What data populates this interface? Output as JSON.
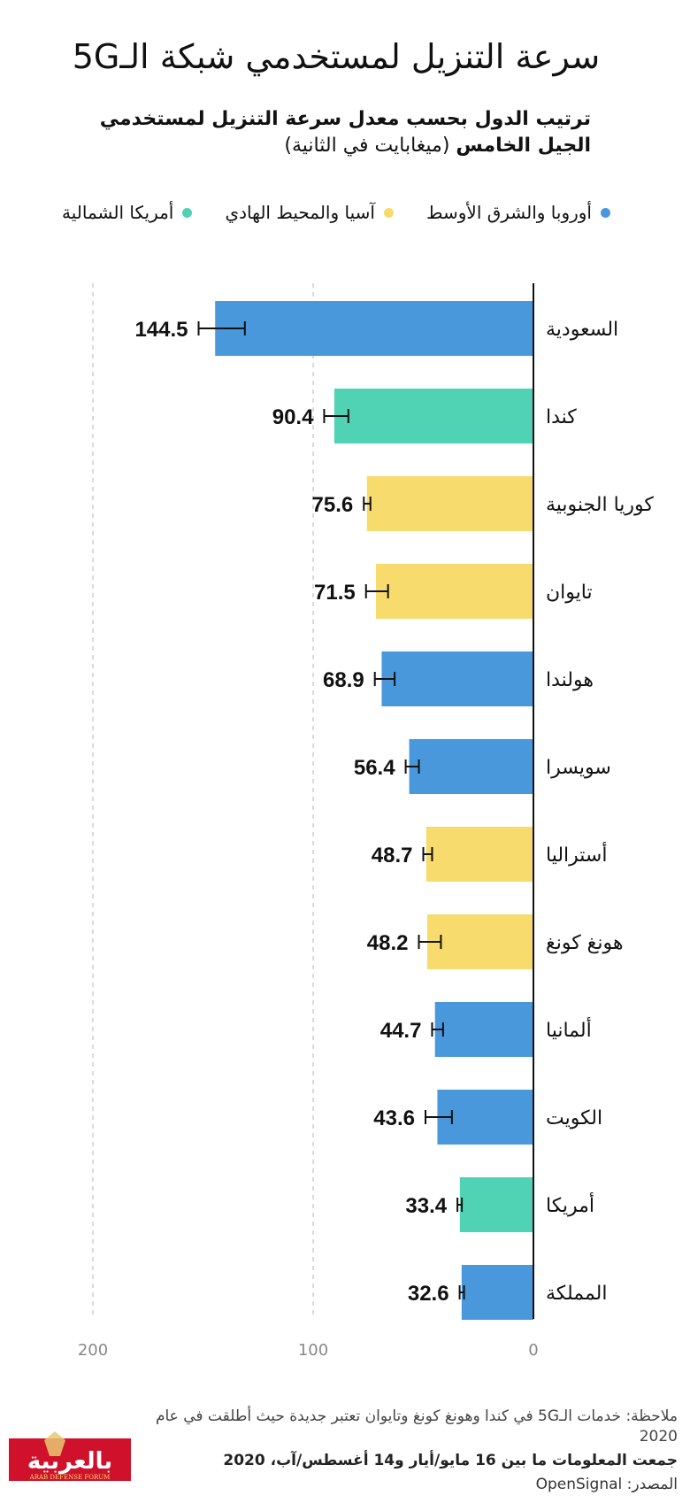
{
  "header": {
    "title": "سرعة التنزيل لمستخدمي شبكة الـ5G",
    "subtitle_bold": "ترتيب الدول بحسب معدل سرعة التنزيل لمستخدمي الجيل الخامس",
    "subtitle_unit": "(ميغابايت في الثانية)"
  },
  "legend": [
    {
      "label": "أوروبا والشرق الأوسط",
      "color": "#4a98dc"
    },
    {
      "label": "آسيا والمحيط الهادي",
      "color": "#f7db6c"
    },
    {
      "label": "أمريكا الشمالية",
      "color": "#4fd3b4"
    }
  ],
  "chart_data": {
    "type": "bar",
    "orientation": "horizontal",
    "categories": [
      "السعودية",
      "كندا",
      "كوريا الجنوبية",
      "تايوان",
      "هولندا",
      "سويسرا",
      "أستراليا",
      "هونغ كونغ",
      "ألمانيا",
      "الكويت",
      "أمريكا",
      "المملكة"
    ],
    "values": [
      144.5,
      90.4,
      75.6,
      71.5,
      68.9,
      56.4,
      48.7,
      48.2,
      44.7,
      43.6,
      33.4,
      32.6
    ],
    "value_labels": [
      "144.5",
      "90.4",
      "75.6",
      "71.5",
      "68.9",
      "56.4",
      "48.7",
      "48.2",
      "44.7",
      "43.6",
      "33.4",
      "32.6"
    ],
    "error_low": [
      131,
      84,
      74,
      66,
      63,
      52,
      46,
      42,
      41,
      37,
      32.5,
      31.5
    ],
    "error_high": [
      152,
      95,
      77,
      76,
      72,
      58,
      50,
      52,
      46,
      49,
      34.5,
      33.5
    ],
    "regions": [
      "أوروبا والشرق الأوسط",
      "أمريكا الشمالية",
      "آسيا والمحيط الهادي",
      "آسيا والمحيط الهادي",
      "أوروبا والشرق الأوسط",
      "أوروبا والشرق الأوسط",
      "آسيا والمحيط الهادي",
      "آسيا والمحيط الهادي",
      "أوروبا والشرق الأوسط",
      "أوروبا والشرق الأوسط",
      "أمريكا الشمالية",
      "أوروبا والشرق الأوسط"
    ],
    "xlim": [
      0,
      200
    ],
    "ticks": [
      0,
      100,
      200
    ],
    "tick_labels": [
      "0",
      "100",
      "200"
    ],
    "grid": "vertical-dashed",
    "legend_position": "top"
  },
  "footer": {
    "note": "ملاحظة: خدمات الـ5G في كندا وهونغ كونغ وتايوان تعتبر جديدة حيث أطلقت في عام 2020",
    "collected": "جمعت المعلومات ما بين 16 مايو/أيار و14 أغسطس/آب، 2020",
    "source": "المصدر: OpenSignal"
  },
  "logo": {
    "text": "بالعربية",
    "subtext": "ARAB DEFENSE FORUM",
    "bg_color": "#d0112b"
  }
}
